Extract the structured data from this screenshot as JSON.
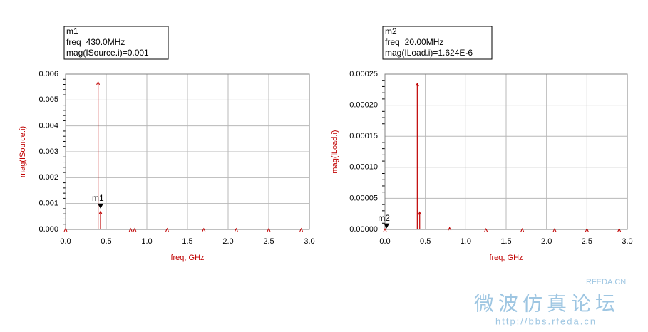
{
  "chart_data": [
    {
      "type": "stem",
      "xlabel": "freq, GHz",
      "ylabel": "mag(ISource.i)",
      "color": "#c00000",
      "grid": true,
      "marker": {
        "name": "m1",
        "freq_label": "freq=430.0MHz",
        "value_label": "mag(ISource.i)=0.001",
        "x": 0.43,
        "y": 0.0008
      },
      "x": [
        0.0,
        0.4,
        0.43,
        0.8,
        0.85,
        1.25,
        1.7,
        2.1,
        2.5,
        2.9
      ],
      "values": [
        3e-05,
        0.0057,
        0.0007,
        3e-05,
        3e-05,
        3e-05,
        3e-05,
        3e-05,
        3e-05,
        3e-05
      ],
      "xlim": [
        0,
        3
      ],
      "ylim": [
        0,
        0.006
      ],
      "xticks": [
        {
          "value": 0,
          "label": "0.0"
        },
        0.5,
        {
          "value": 1,
          "label": "1.0"
        },
        1.5,
        {
          "value": 2,
          "label": "2.0"
        },
        2.5,
        {
          "value": 3,
          "label": "3.0"
        }
      ],
      "yticks": [
        {
          "value": 0,
          "label": "0.000"
        },
        0.001,
        0.002,
        0.003,
        0.004,
        0.005,
        0.006
      ]
    },
    {
      "type": "stem",
      "xlabel": "freq, GHz",
      "ylabel": "mag(lLoad.i)",
      "color": "#c00000",
      "grid": true,
      "marker": {
        "name": "m2",
        "freq_label": "freq=20.00MHz",
        "value_label": "mag(ILoad.i)=1.624E-6",
        "x": 0.02,
        "y": 1.624e-06
      },
      "x": [
        0.0,
        0.4,
        0.43,
        0.8,
        1.25,
        1.7,
        2.1,
        2.5,
        2.9
      ],
      "values": [
        1e-06,
        0.000235,
        2.8e-05,
        3e-06,
        1e-06,
        1e-06,
        1e-06,
        1e-06,
        1e-06
      ],
      "xlim": [
        0,
        3
      ],
      "ylim": [
        0,
        0.00025
      ],
      "xticks": [
        {
          "value": 0,
          "label": "0.0"
        },
        0.5,
        {
          "value": 1,
          "label": "1.0"
        },
        1.5,
        {
          "value": 2,
          "label": "2.0"
        },
        2.5,
        {
          "value": 3,
          "label": "3.0"
        }
      ],
      "yticks": [
        {
          "value": 0,
          "label": "0.00000"
        },
        5e-05,
        {
          "value": 0.0001,
          "label": "0.00010"
        },
        0.00015,
        {
          "value": 0.0002,
          "label": "0.00020"
        },
        0.00025
      ]
    }
  ],
  "watermark": {
    "site": "RFEDA.CN",
    "forum": "微波仿真论坛",
    "url": "http://bbs.rfeda.cn"
  }
}
